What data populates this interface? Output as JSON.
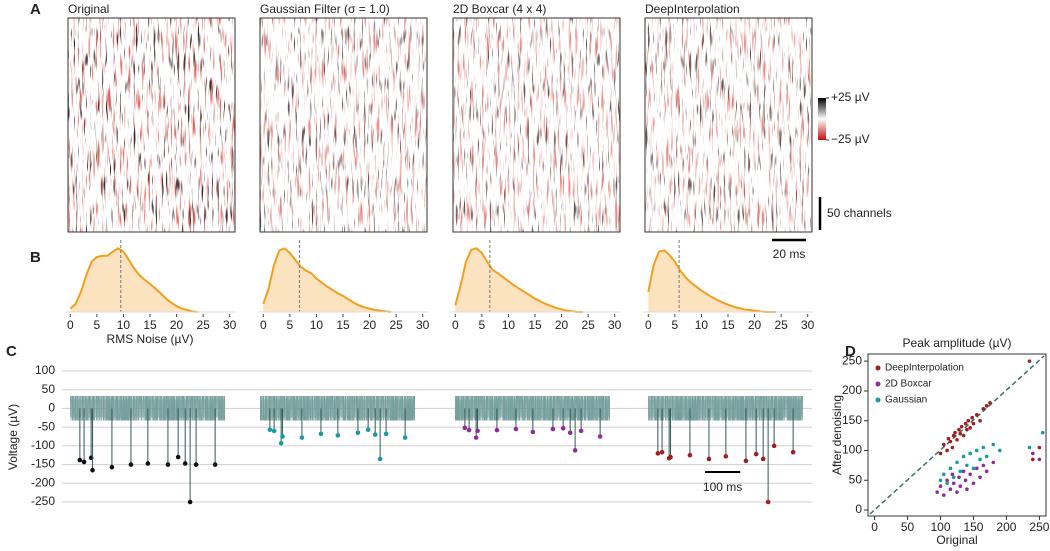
{
  "chart_data": [
    {
      "type": "heatmap",
      "panel": "A",
      "titles": [
        "Original",
        "Gaussian Filter (σ = 1.0)",
        "2D Boxcar (4 x 4)",
        "DeepInterpolation"
      ],
      "clim": [
        -25,
        25
      ],
      "colorbar_ticks": [
        {
          "value": 25,
          "label": "+25 µV"
        },
        {
          "value": -25,
          "label": "−25 µV"
        }
      ],
      "scale_bars": [
        {
          "label": "50 channels"
        },
        {
          "label": "20 ms"
        }
      ]
    },
    {
      "type": "density",
      "panel": "B",
      "xlabel": "RMS Noise (µV)",
      "xlim": [
        -1,
        31
      ],
      "xticks": [
        0,
        5,
        10,
        15,
        20,
        25,
        30
      ],
      "ylim": [
        0,
        1
      ],
      "color": "#f0a020",
      "fill": "#fbe3bf",
      "x": [
        0,
        1,
        2,
        3,
        4,
        5,
        6,
        7,
        8,
        9,
        10,
        11,
        12,
        13,
        14,
        15,
        16,
        17,
        18,
        19,
        20,
        21,
        22,
        23,
        24
      ],
      "series": [
        {
          "median": 9.5,
          "values": [
            0.05,
            0.12,
            0.3,
            0.55,
            0.75,
            0.82,
            0.84,
            0.84,
            0.9,
            0.95,
            0.9,
            0.78,
            0.65,
            0.55,
            0.48,
            0.42,
            0.35,
            0.28,
            0.2,
            0.14,
            0.09,
            0.05,
            0.03,
            0.01,
            0
          ]
        },
        {
          "median": 6.8,
          "values": [
            0.12,
            0.35,
            0.7,
            0.92,
            0.95,
            0.88,
            0.78,
            0.68,
            0.62,
            0.58,
            0.5,
            0.44,
            0.38,
            0.33,
            0.28,
            0.24,
            0.19,
            0.14,
            0.1,
            0.07,
            0.05,
            0.03,
            0.02,
            0.01,
            0
          ]
        },
        {
          "median": 6.5,
          "values": [
            0.1,
            0.4,
            0.75,
            0.93,
            0.95,
            0.88,
            0.75,
            0.63,
            0.58,
            0.52,
            0.46,
            0.4,
            0.35,
            0.3,
            0.25,
            0.2,
            0.16,
            0.12,
            0.09,
            0.06,
            0.04,
            0.02,
            0.01,
            0,
            0
          ]
        },
        {
          "median": 5.8,
          "values": [
            0.3,
            0.7,
            0.9,
            0.92,
            0.85,
            0.75,
            0.62,
            0.52,
            0.44,
            0.38,
            0.32,
            0.27,
            0.22,
            0.18,
            0.14,
            0.11,
            0.08,
            0.06,
            0.04,
            0.03,
            0.02,
            0.01,
            0,
            0,
            0
          ]
        }
      ]
    },
    {
      "type": "trace",
      "panel": "C",
      "ylabel": "Voltage (µV)",
      "ylim": [
        -258,
        108
      ],
      "yticks": [
        100,
        50,
        0,
        -50,
        -100,
        -150,
        -200,
        -250
      ],
      "grid": true,
      "xlim": [
        0,
        440
      ],
      "trace_color": "#2f5a57",
      "scale_bar": {
        "value": 100,
        "label": "100 ms"
      },
      "x": [
        28,
        40,
        60,
        64,
        119,
        173,
        221,
        278,
        307,
        327,
        341,
        358,
        412
      ],
      "series": [
        {
          "color": "#111111",
          "values": [
            -138,
            -143,
            -132,
            -165,
            -157,
            -150,
            -147,
            -150,
            -130,
            -147,
            -250,
            -150,
            -150
          ]
        },
        {
          "color": "#1a9aa0",
          "values": [
            -57,
            -60,
            -93,
            -75,
            -78,
            -68,
            -72,
            -65,
            -57,
            -70,
            -135,
            -68,
            -78
          ]
        },
        {
          "color": "#8e2c9c",
          "values": [
            -52,
            -58,
            -78,
            -60,
            -58,
            -55,
            -63,
            -55,
            -53,
            -65,
            -112,
            -60,
            -75
          ]
        },
        {
          "color": "#a01f1f",
          "values": [
            -120,
            -117,
            -133,
            -130,
            -125,
            -135,
            -128,
            -140,
            -122,
            -135,
            -250,
            -100,
            -117
          ]
        }
      ]
    },
    {
      "type": "scatter",
      "panel": "D",
      "title": "Peak amplitude (µV)",
      "xlabel": "Original",
      "ylabel": "After denoising",
      "xlim": [
        -10,
        260
      ],
      "ylim": [
        -10,
        262
      ],
      "xticks": [
        0,
        50,
        100,
        150,
        200,
        250
      ],
      "yticks": [
        0,
        50,
        100,
        150,
        200,
        250
      ],
      "legend": "top-left",
      "series": [
        {
          "name": "DeepInterpolation",
          "color": "#a01f1f",
          "x": [
            100,
            105,
            110,
            112,
            115,
            118,
            120,
            122,
            125,
            128,
            130,
            132,
            135,
            138,
            140,
            142,
            145,
            148,
            150,
            155,
            160,
            165,
            170,
            175,
            240,
            250,
            235
          ],
          "values": [
            95,
            110,
            100,
            120,
            115,
            105,
            125,
            130,
            118,
            135,
            128,
            140,
            125,
            145,
            135,
            150,
            138,
            155,
            145,
            160,
            150,
            170,
            175,
            180,
            85,
            105,
            250
          ]
        },
        {
          "name": "2D Boxcar",
          "color": "#8e2c9c",
          "x": [
            95,
            100,
            105,
            110,
            115,
            118,
            120,
            125,
            128,
            130,
            135,
            138,
            140,
            145,
            150,
            155,
            160,
            165,
            170,
            180,
            240,
            250
          ],
          "values": [
            30,
            40,
            25,
            50,
            35,
            60,
            45,
            30,
            55,
            40,
            65,
            50,
            35,
            60,
            45,
            70,
            55,
            75,
            65,
            80,
            95,
            85
          ]
        },
        {
          "name": "Gaussian",
          "color": "#1a9aa0",
          "x": [
            100,
            105,
            110,
            115,
            120,
            125,
            130,
            135,
            140,
            145,
            150,
            155,
            160,
            165,
            170,
            180,
            190,
            235,
            255
          ],
          "values": [
            50,
            60,
            45,
            70,
            55,
            80,
            65,
            90,
            75,
            95,
            70,
            100,
            85,
            105,
            90,
            110,
            100,
            105,
            130
          ]
        }
      ]
    }
  ]
}
